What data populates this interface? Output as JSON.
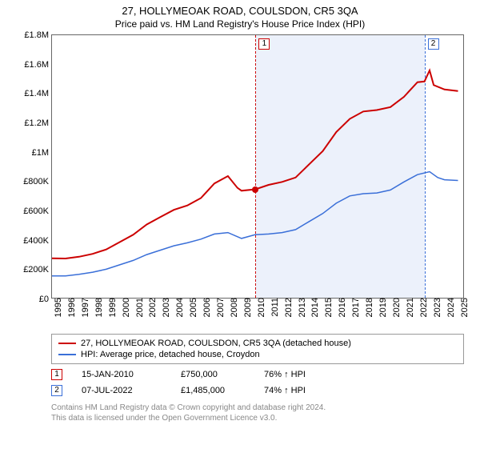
{
  "title": "27, HOLLYMEOAK ROAD, COULSDON, CR5 3QA",
  "subtitle": "Price paid vs. HM Land Registry's House Price Index (HPI)",
  "chart": {
    "type": "line",
    "background_color": "#ffffff",
    "border_color": "#666666",
    "grid_color": "#666666",
    "x_years": [
      1995,
      1996,
      1997,
      1998,
      1999,
      2000,
      2001,
      2002,
      2003,
      2004,
      2005,
      2006,
      2007,
      2008,
      2009,
      2010,
      2011,
      2012,
      2013,
      2014,
      2015,
      2016,
      2017,
      2018,
      2019,
      2020,
      2021,
      2022,
      2023,
      2024,
      2025
    ],
    "xlim": [
      1995,
      2025.5
    ],
    "ylim": [
      0,
      1800000
    ],
    "ytick_step": 200000,
    "ytick_labels": [
      "£0",
      "£200K",
      "£400K",
      "£600K",
      "£800K",
      "£1M",
      "£1.2M",
      "£1.4M",
      "£1.6M",
      "£1.8M"
    ],
    "shade_start_year": 2010.04,
    "shade_end_year": 2022.52,
    "vline1_color": "#cc0000",
    "vline2_color": "#3a6fd8",
    "series": [
      {
        "name": "27, HOLLYMEOAK ROAD, COULSDON, CR5 3QA (detached house)",
        "color": "#cc0000",
        "width": 2,
        "data": [
          [
            1995,
            280000
          ],
          [
            1996,
            278000
          ],
          [
            1997,
            290000
          ],
          [
            1998,
            310000
          ],
          [
            1999,
            340000
          ],
          [
            2000,
            390000
          ],
          [
            2001,
            440000
          ],
          [
            2002,
            510000
          ],
          [
            2003,
            560000
          ],
          [
            2004,
            610000
          ],
          [
            2005,
            640000
          ],
          [
            2006,
            690000
          ],
          [
            2007,
            790000
          ],
          [
            2008,
            840000
          ],
          [
            2008.7,
            760000
          ],
          [
            2009,
            740000
          ],
          [
            2010.04,
            750000
          ],
          [
            2011,
            780000
          ],
          [
            2012,
            800000
          ],
          [
            2013,
            830000
          ],
          [
            2014,
            920000
          ],
          [
            2015,
            1010000
          ],
          [
            2016,
            1140000
          ],
          [
            2017,
            1230000
          ],
          [
            2018,
            1280000
          ],
          [
            2019,
            1290000
          ],
          [
            2020,
            1310000
          ],
          [
            2021,
            1380000
          ],
          [
            2022,
            1480000
          ],
          [
            2022.52,
            1485000
          ],
          [
            2022.9,
            1560000
          ],
          [
            2023.2,
            1460000
          ],
          [
            2024,
            1430000
          ],
          [
            2025,
            1420000
          ]
        ]
      },
      {
        "name": "HPI: Average price, detached house, Croydon",
        "color": "#3a6fd8",
        "width": 1.5,
        "data": [
          [
            1995,
            160000
          ],
          [
            1996,
            160000
          ],
          [
            1997,
            170000
          ],
          [
            1998,
            185000
          ],
          [
            1999,
            205000
          ],
          [
            2000,
            235000
          ],
          [
            2001,
            265000
          ],
          [
            2002,
            305000
          ],
          [
            2003,
            335000
          ],
          [
            2004,
            365000
          ],
          [
            2005,
            385000
          ],
          [
            2006,
            410000
          ],
          [
            2007,
            445000
          ],
          [
            2008,
            455000
          ],
          [
            2009,
            415000
          ],
          [
            2010,
            440000
          ],
          [
            2011,
            445000
          ],
          [
            2012,
            455000
          ],
          [
            2013,
            475000
          ],
          [
            2014,
            530000
          ],
          [
            2015,
            585000
          ],
          [
            2016,
            655000
          ],
          [
            2017,
            705000
          ],
          [
            2018,
            720000
          ],
          [
            2019,
            725000
          ],
          [
            2020,
            745000
          ],
          [
            2021,
            800000
          ],
          [
            2022,
            850000
          ],
          [
            2022.9,
            870000
          ],
          [
            2023.5,
            830000
          ],
          [
            2024,
            815000
          ],
          [
            2025,
            810000
          ]
        ]
      }
    ],
    "sale_points": [
      {
        "x": 2010.04,
        "y": 750000,
        "color": "#cc0000"
      }
    ],
    "markers": [
      {
        "label": "1",
        "year": 2010.04,
        "color": "#cc0000"
      },
      {
        "label": "2",
        "year": 2022.52,
        "color": "#3a6fd8"
      }
    ]
  },
  "legend": {
    "items": [
      {
        "color": "#cc0000",
        "label": "27, HOLLYMEOAK ROAD, COULSDON, CR5 3QA (detached house)"
      },
      {
        "color": "#3a6fd8",
        "label": "HPI: Average price, detached house, Croydon"
      }
    ]
  },
  "sales": [
    {
      "label": "1",
      "color": "#cc0000",
      "date": "15-JAN-2010",
      "price": "£750,000",
      "hpi": "76% ↑ HPI"
    },
    {
      "label": "2",
      "color": "#3a6fd8",
      "date": "07-JUL-2022",
      "price": "£1,485,000",
      "hpi": "74% ↑ HPI"
    }
  ],
  "footer": {
    "line1": "Contains HM Land Registry data © Crown copyright and database right 2024.",
    "line2": "This data is licensed under the Open Government Licence v3.0."
  }
}
